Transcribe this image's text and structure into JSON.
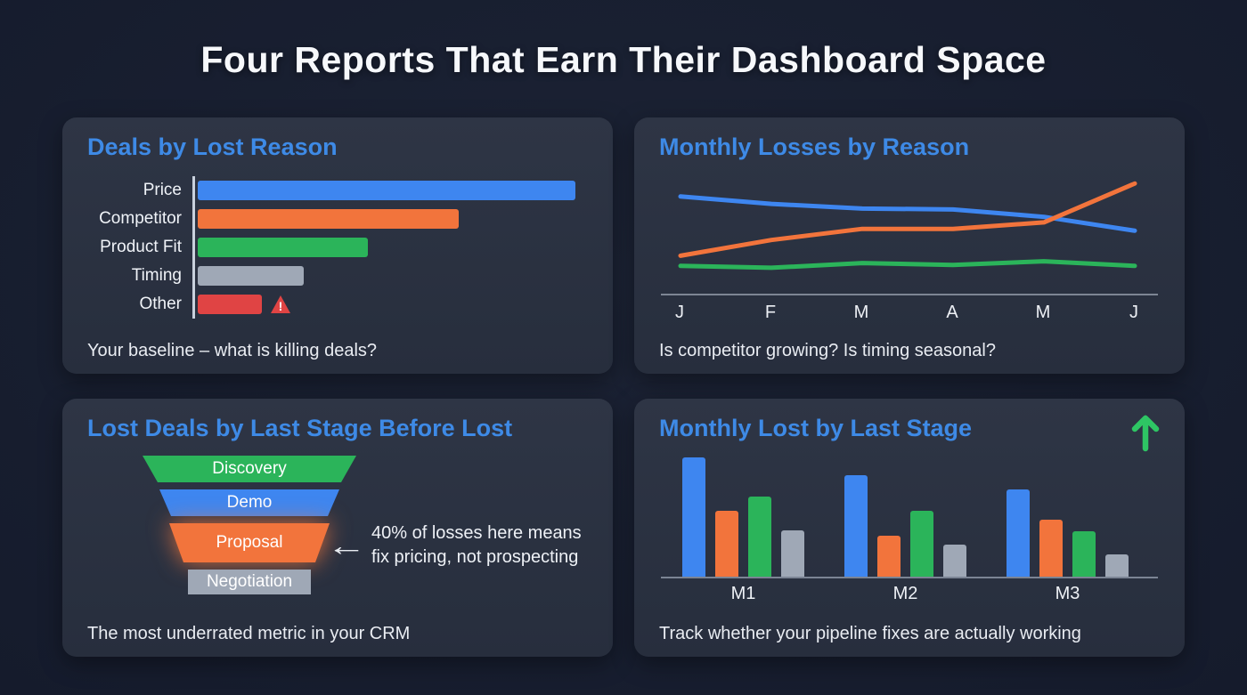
{
  "page": {
    "title": "Four Reports That Earn Their Dashboard Space"
  },
  "theme": {
    "background": "#141a2a",
    "panel": "#2b3240",
    "accent_blue": "#3e8ae6",
    "text": "#eef1f6",
    "series_colors": {
      "blue": "#3e86f0",
      "orange": "#f2743c",
      "green": "#2bb45a",
      "gray": "#9fa8b6",
      "red": "#e04444"
    }
  },
  "chart_data": [
    {
      "type": "bar",
      "orientation": "horizontal",
      "title": "Deals by Lost Reason",
      "categories": [
        "Price",
        "Competitor",
        "Product Fit",
        "Timing",
        "Other"
      ],
      "values": [
        100,
        69,
        45,
        28,
        17
      ],
      "colors": [
        "#3e86f0",
        "#f2743c",
        "#2bb45a",
        "#9fa8b6",
        "#e04444"
      ],
      "xlim": [
        0,
        100
      ],
      "warning_on": "Other",
      "warning_icon": "warning-triangle",
      "caption": "Your baseline – what is killing deals?"
    },
    {
      "type": "line",
      "title": "Monthly Losses by Reason",
      "x": [
        "J",
        "F",
        "M",
        "A",
        "M",
        "J"
      ],
      "ylim": [
        0,
        100
      ],
      "grid": false,
      "legend": "none",
      "series": [
        {
          "name": "blue",
          "color": "#3e86f0",
          "values": [
            80,
            72,
            67,
            66,
            58,
            43
          ]
        },
        {
          "name": "orange",
          "color": "#f2743c",
          "values": [
            16,
            33,
            45,
            45,
            52,
            94
          ]
        },
        {
          "name": "green",
          "color": "#2bb45a",
          "values": [
            5,
            3,
            8,
            6,
            10,
            5
          ]
        }
      ],
      "caption": "Is competitor growing? Is timing seasonal?"
    },
    {
      "type": "funnel",
      "title": "Lost Deals by Last Stage Before Lost",
      "stages": [
        {
          "label": "Discovery",
          "color": "#2bb45a",
          "top_width": 240,
          "bottom_width": 206,
          "height": 30
        },
        {
          "label": "Demo",
          "color": "#3e86f0",
          "top_width": 202,
          "bottom_width": 176,
          "height": 30
        },
        {
          "label": "Proposal",
          "color": "#f2743c",
          "top_width": 180,
          "bottom_width": 148,
          "height": 44,
          "highlighted": true
        },
        {
          "label": "Negotiation",
          "color": "#9fa8b6",
          "top_width": 138,
          "bottom_width": 138,
          "height": 28
        }
      ],
      "annotation": {
        "arrow": "←",
        "lines": [
          "40% of losses here means",
          "fix pricing, not prospecting"
        ]
      },
      "caption": "The most underrated metric in your CRM"
    },
    {
      "type": "bar",
      "grouped": true,
      "title": "Monthly Lost by Last Stage",
      "categories": [
        "M1",
        "M2",
        "M3"
      ],
      "ylim": [
        0,
        100
      ],
      "series": [
        {
          "name": "blue",
          "color": "#3e86f0",
          "values": [
            100,
            85,
            73
          ]
        },
        {
          "name": "orange",
          "color": "#f2743c",
          "values": [
            55,
            34,
            48
          ]
        },
        {
          "name": "green",
          "color": "#2bb45a",
          "values": [
            67,
            55,
            38
          ]
        },
        {
          "name": "gray",
          "color": "#9fa8b6",
          "values": [
            39,
            27,
            19
          ]
        }
      ],
      "trend_icon": "up-arrow",
      "trend_icon_color": "#2ec564",
      "caption": "Track whether your pipeline fixes are actually working"
    }
  ]
}
